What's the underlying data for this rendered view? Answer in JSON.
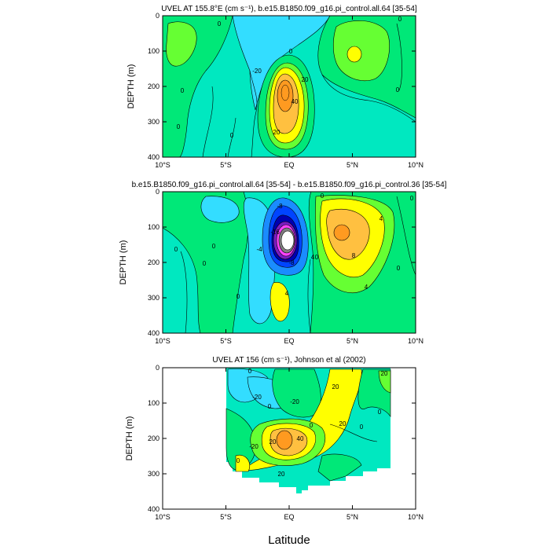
{
  "xlabel_shared": "Latitude",
  "colors": {
    "cyan": "#33ddff",
    "aqua": "#00e8c0",
    "green": "#00e878",
    "lightgreen": "#66ff33",
    "yellow": "#ffff00",
    "gold": "#ffc040",
    "orange": "#ff9a20",
    "blue1": "#1a8cff",
    "blue2": "#0044ff",
    "navy": "#0000b0",
    "purple": "#7a1cc0",
    "magenta": "#ff44ff",
    "gray": "#808080",
    "white": "#ffffff"
  },
  "chart_data": [
    {
      "type": "heatmap",
      "title": "UVEL AT 155.8°E (cm s⁻¹), b.e15.B1850.f09_g16.pi_control.all.64 [35-54]",
      "xlabel": "",
      "ylabel": "DEPTH (m)",
      "xlim": [
        -10,
        10
      ],
      "ylim": [
        400,
        0
      ],
      "x_ticks": [
        "10°S",
        "5°S",
        "EQ",
        "5°N",
        "10°N"
      ],
      "y_ticks": [
        "0",
        "100",
        "200",
        "300",
        "400"
      ],
      "contour_labels": [
        "0",
        "0",
        "-20",
        "0",
        "0",
        "20",
        "40",
        "20",
        "0",
        "0",
        "0"
      ],
      "features": [
        {
          "label": "eastward core",
          "lat": 0,
          "depth": 220,
          "max": 50
        },
        {
          "label": "westward surface flow",
          "lat": -2.5,
          "depth": 50,
          "min": -20
        }
      ]
    },
    {
      "type": "heatmap",
      "title": "b.e15.B1850.f09_g16.pi_control.all.64 [35-54] - b.e15.B1850.f09_g16.pi_control.36 [35-54]",
      "xlabel": "",
      "ylabel": "DEPTH (m)",
      "xlim": [
        -10,
        10
      ],
      "ylim": [
        400,
        0
      ],
      "x_ticks": [
        "10°S",
        "5°S",
        "EQ",
        "5°N",
        "10°N"
      ],
      "y_ticks": [
        "0",
        "100",
        "200",
        "300",
        "400"
      ],
      "contour_labels": [
        "0",
        "0",
        "0",
        "0",
        "-4",
        "-8",
        "-16",
        "-8",
        "4",
        "4",
        "8",
        "4",
        "4",
        "0",
        "0",
        "0",
        "0"
      ],
      "features": [
        {
          "label": "negative difference minimum",
          "lat": 0,
          "depth": 135,
          "min": -24
        },
        {
          "label": "positive difference maximum",
          "lat": 5,
          "depth": 120,
          "max": 10
        }
      ]
    },
    {
      "type": "heatmap",
      "title": "UVEL AT 156 (cm s⁻¹), Johnson et al (2002)",
      "xlabel": "Latitude",
      "ylabel": "DEPTH (m)",
      "xlim": [
        -10,
        10
      ],
      "ylim": [
        400,
        0
      ],
      "x_ticks": [
        "10°S",
        "5°S",
        "EQ",
        "5°N",
        "10°N"
      ],
      "y_ticks": [
        "0",
        "100",
        "200",
        "300",
        "400"
      ],
      "contour_labels": [
        "-20",
        "0",
        "0",
        "20",
        "-20",
        "20",
        "0",
        "-20",
        "20",
        "40",
        "20",
        "20",
        "0",
        "0",
        "0"
      ],
      "features": [
        {
          "label": "eastward core",
          "lat": -0.5,
          "depth": 200,
          "max": 45
        },
        {
          "label": "data coverage",
          "lat_range": [
            -5,
            8
          ],
          "depth_range": [
            0,
            350
          ]
        }
      ]
    }
  ]
}
